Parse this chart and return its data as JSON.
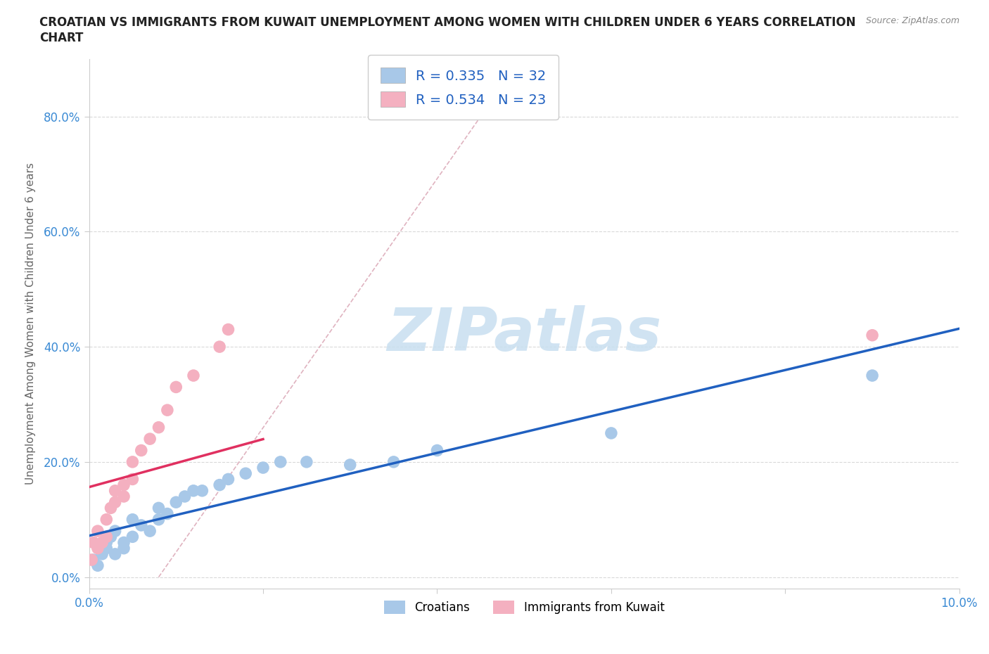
{
  "title_line1": "CROATIAN VS IMMIGRANTS FROM KUWAIT UNEMPLOYMENT AMONG WOMEN WITH CHILDREN UNDER 6 YEARS CORRELATION",
  "title_line2": "CHART",
  "source": "Source: ZipAtlas.com",
  "ylabel": "Unemployment Among Women with Children Under 6 years",
  "xlabel": "",
  "xlim": [
    0.0,
    0.1
  ],
  "ylim": [
    -0.02,
    0.9
  ],
  "yticks": [
    0.0,
    0.2,
    0.4,
    0.6,
    0.8
  ],
  "yticklabels": [
    "0.0%",
    "20.0%",
    "40.0%",
    "60.0%",
    "80.0%"
  ],
  "xticks": [
    0.0,
    0.02,
    0.04,
    0.06,
    0.08,
    0.1
  ],
  "xticklabels": [
    "0.0%",
    "",
    "",
    "",
    "",
    "10.0%"
  ],
  "croatian_x": [
    0.0005,
    0.001,
    0.0015,
    0.002,
    0.002,
    0.0025,
    0.003,
    0.003,
    0.004,
    0.004,
    0.005,
    0.005,
    0.006,
    0.007,
    0.008,
    0.008,
    0.009,
    0.01,
    0.011,
    0.012,
    0.013,
    0.015,
    0.016,
    0.018,
    0.02,
    0.022,
    0.025,
    0.03,
    0.035,
    0.04,
    0.06,
    0.09
  ],
  "croatian_y": [
    0.03,
    0.02,
    0.04,
    0.06,
    0.05,
    0.07,
    0.04,
    0.08,
    0.06,
    0.05,
    0.1,
    0.07,
    0.09,
    0.08,
    0.12,
    0.1,
    0.11,
    0.13,
    0.14,
    0.15,
    0.15,
    0.16,
    0.17,
    0.18,
    0.19,
    0.2,
    0.2,
    0.195,
    0.2,
    0.22,
    0.25,
    0.35
  ],
  "kuwait_x": [
    0.0003,
    0.0005,
    0.001,
    0.001,
    0.0015,
    0.002,
    0.002,
    0.0025,
    0.003,
    0.003,
    0.004,
    0.004,
    0.005,
    0.005,
    0.006,
    0.007,
    0.008,
    0.009,
    0.01,
    0.012,
    0.015,
    0.016,
    0.09
  ],
  "kuwait_y": [
    0.03,
    0.06,
    0.05,
    0.08,
    0.06,
    0.1,
    0.07,
    0.12,
    0.13,
    0.15,
    0.16,
    0.14,
    0.17,
    0.2,
    0.22,
    0.24,
    0.26,
    0.29,
    0.33,
    0.35,
    0.4,
    0.43,
    0.42
  ],
  "R_croatian": 0.335,
  "N_croatian": 32,
  "R_kuwait": 0.534,
  "N_kuwait": 23,
  "croatian_color": "#a8c8e8",
  "kuwait_color": "#f4b0c0",
  "croatian_line_color": "#2060c0",
  "kuwait_line_color": "#e03060",
  "diagonal_line_color": "#e0b0c0",
  "grid_color": "#d0d0d0",
  "watermark_color": "#c8dff0"
}
